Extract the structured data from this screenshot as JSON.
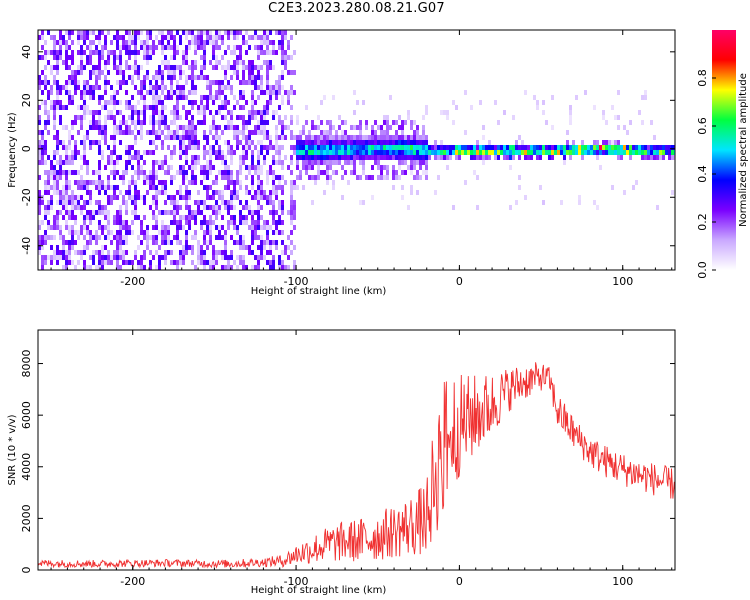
{
  "figure_title": "C2E3.2023.280.08.21.G07",
  "chart_data": [
    {
      "type": "heatmap",
      "title": "",
      "xlabel": "Height of straight line (km)",
      "ylabel": "Frequency (Hz)",
      "xlim": [
        -258,
        132
      ],
      "ylim": [
        -50,
        49
      ],
      "x_ticks": [
        -200,
        -100,
        0,
        100
      ],
      "y_ticks": [
        -40,
        -20,
        0,
        20,
        40
      ],
      "x_tick_labels": [
        "-200",
        "-100",
        "0",
        "100"
      ],
      "y_tick_labels": [
        "-40",
        "-20",
        "0",
        "20",
        "40"
      ],
      "grid": false,
      "noise_region_x": [
        -258,
        -104
      ],
      "ridge": [
        {
          "x": -112,
          "f": 2,
          "amp": 0.45
        },
        {
          "x": -90,
          "f": 0,
          "amp": 0.5
        },
        {
          "x": -60,
          "f": 1,
          "amp": 0.45
        },
        {
          "x": -30,
          "f": 1,
          "amp": 0.5
        },
        {
          "x": -15,
          "f": 0,
          "amp": 0.55
        },
        {
          "x": 0,
          "f": 0,
          "amp": 0.75
        },
        {
          "x": 20,
          "f": 0,
          "amp": 0.7
        },
        {
          "x": 50,
          "f": 0,
          "amp": 0.7
        },
        {
          "x": 88,
          "f": 1,
          "amp": 0.85
        },
        {
          "x": 110,
          "f": 0,
          "amp": 0.7
        },
        {
          "x": 132,
          "f": 0,
          "amp": 0.5
        }
      ],
      "colorbar": {
        "label": "Normalized spectral amplitude",
        "range": [
          0,
          1
        ],
        "ticks": [
          0.0,
          0.2,
          0.4,
          0.6,
          0.8
        ],
        "tick_labels": [
          "0.0",
          "0.2",
          "0.4",
          "0.6",
          "0.8"
        ],
        "colors": [
          "#ffffff",
          "#c9a8ff",
          "#7a00ff",
          "#0000ff",
          "#00e5ff",
          "#00ff40",
          "#ffff00",
          "#ff0000",
          "#ff0066"
        ]
      }
    },
    {
      "type": "line",
      "title": "",
      "xlabel": "Height of straight line (km)",
      "ylabel": "SNR (10 * v/v)",
      "xlim": [
        -258,
        132
      ],
      "ylim": [
        0,
        9300
      ],
      "x_ticks": [
        -200,
        -100,
        0,
        100
      ],
      "y_ticks": [
        0,
        2000,
        4000,
        6000,
        8000
      ],
      "x_tick_labels": [
        "-200",
        "-100",
        "0",
        "100"
      ],
      "y_tick_labels": [
        "0",
        "2000",
        "4000",
        "6000",
        "8000"
      ],
      "grid": false,
      "color": "#f03030",
      "series": [
        {
          "x": [
            -258,
            -240,
            -220,
            -200,
            -180,
            -160,
            -140,
            -120,
            -108,
            -100,
            -90,
            -80,
            -70,
            -60,
            -50,
            -40,
            -30,
            -20,
            -15,
            -10,
            -5,
            0,
            10,
            20,
            30,
            40,
            50,
            55,
            60,
            70,
            80,
            90,
            100,
            110,
            120,
            132
          ],
          "y": [
            260,
            250,
            240,
            260,
            270,
            250,
            240,
            300,
            360,
            600,
            800,
            1000,
            1100,
            1150,
            1300,
            1500,
            1700,
            2000,
            3600,
            4800,
            5300,
            5600,
            6000,
            6400,
            7000,
            7300,
            7500,
            7400,
            6200,
            5300,
            4600,
            4200,
            3900,
            3700,
            3500,
            3300
          ],
          "spread": [
            180,
            180,
            180,
            180,
            180,
            180,
            200,
            220,
            300,
            500,
            700,
            900,
            1000,
            1100,
            1200,
            1300,
            1500,
            1800,
            3000,
            3500,
            3000,
            2500,
            2000,
            1600,
            1100,
            900,
            700,
            600,
            900,
            800,
            800,
            800,
            800,
            800,
            800,
            800
          ]
        }
      ]
    }
  ]
}
